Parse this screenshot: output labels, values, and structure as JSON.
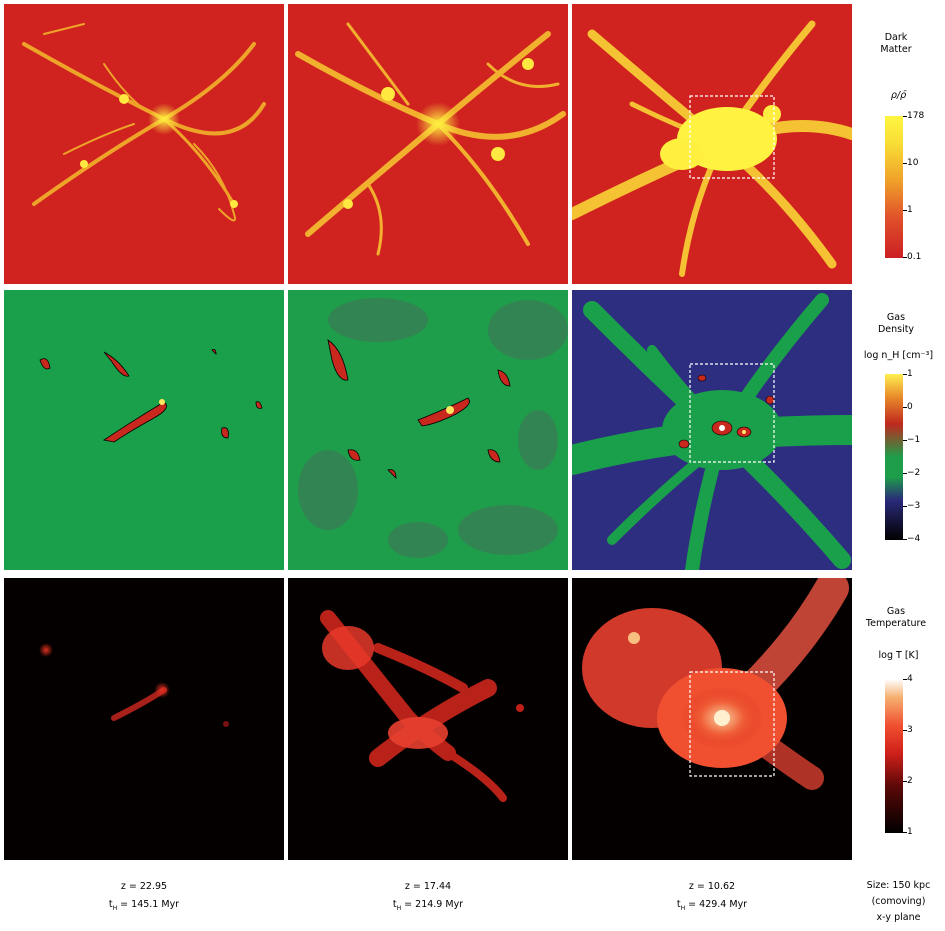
{
  "rows": [
    {
      "name": "dark-matter",
      "title": [
        "Dark",
        "Matter"
      ],
      "label": "ρ/ρ̄",
      "ticks": [
        "178",
        "10",
        "1",
        "0.1"
      ],
      "colors": [
        "#cc1f24",
        "#e0502a",
        "#f0a22a",
        "#f8dc35",
        "#fff640"
      ]
    },
    {
      "name": "gas-density",
      "title": [
        "Gas",
        "Density"
      ],
      "label": "log n_H [cm⁻³]",
      "ticks": [
        "1",
        "0",
        "−1",
        "−2",
        "−3",
        "−4"
      ],
      "colors": [
        "#000000",
        "#2a2a7a",
        "#1e9e4a",
        "#c0281e",
        "#e88a2a",
        "#fff050"
      ]
    },
    {
      "name": "gas-temperature",
      "title": [
        "Gas",
        "Temperature"
      ],
      "label": "log T [K]",
      "ticks": [
        "4",
        "3",
        "2",
        "1"
      ],
      "colors": [
        "#000000",
        "#5a0808",
        "#d0201a",
        "#f05030",
        "#f5b070",
        "#ffffff"
      ]
    }
  ],
  "columns": [
    {
      "z": "z = 22.95",
      "t_label": "t",
      "t_sub": "H",
      "t_value": "= 145.1 Myr"
    },
    {
      "z": "z = 17.44",
      "t_label": "t",
      "t_sub": "H",
      "t_value": "= 214.9 Myr"
    },
    {
      "z": "z = 10.62",
      "t_label": "t",
      "t_sub": "H",
      "t_value": "= 429.4 Myr"
    }
  ],
  "size_caption": [
    "Size: 150 kpc",
    "(comoving)",
    "x-y plane"
  ]
}
